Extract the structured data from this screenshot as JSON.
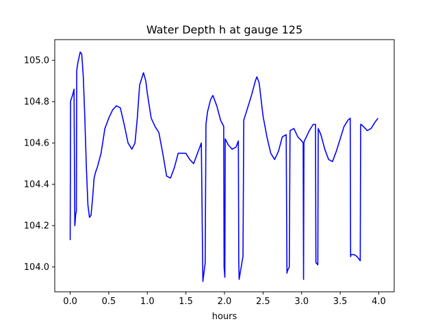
{
  "chart_data": {
    "type": "line",
    "title": "Water Depth h at gauge 125",
    "xlabel": "hours",
    "ylabel": "",
    "xlim": [
      -0.2,
      4.2
    ],
    "ylim": [
      103.88,
      105.1
    ],
    "xticks": [
      0.0,
      0.5,
      1.0,
      1.5,
      2.0,
      2.5,
      3.0,
      3.5,
      4.0
    ],
    "xtick_labels": [
      "0.0",
      "0.5",
      "1.0",
      "1.5",
      "2.0",
      "2.5",
      "3.0",
      "3.5",
      "4.0"
    ],
    "yticks": [
      104.0,
      104.2,
      104.4,
      104.6,
      104.8,
      105.0
    ],
    "ytick_labels": [
      "104.0",
      "104.2",
      "104.4",
      "104.6",
      "104.8",
      "105.0"
    ],
    "grid": false,
    "line_color": "#0000ff",
    "series": [
      {
        "x": [
          0.0,
          0.005,
          0.01,
          0.012,
          0.03,
          0.05,
          0.06,
          0.065,
          0.07,
          0.08,
          0.085,
          0.1,
          0.13,
          0.15,
          0.17,
          0.19,
          0.21,
          0.23,
          0.25,
          0.27,
          0.29,
          0.31,
          0.33,
          0.35,
          0.4,
          0.45,
          0.5,
          0.55,
          0.6,
          0.65,
          0.7,
          0.75,
          0.8,
          0.84,
          0.87,
          0.9,
          0.95,
          0.98,
          1.0,
          1.05,
          1.1,
          1.15,
          1.2,
          1.25,
          1.3,
          1.35,
          1.4,
          1.45,
          1.5,
          1.55,
          1.6,
          1.65,
          1.7,
          1.72,
          1.73,
          1.75,
          1.76,
          1.78,
          1.82,
          1.85,
          1.9,
          1.95,
          1.99,
          1.995,
          2.005,
          2.01,
          2.05,
          2.1,
          2.15,
          2.18,
          2.185,
          2.19,
          2.23,
          2.24,
          2.25,
          2.3,
          2.35,
          2.4,
          2.42,
          2.45,
          2.5,
          2.55,
          2.6,
          2.65,
          2.7,
          2.75,
          2.8,
          2.81,
          2.815,
          2.84,
          2.85,
          2.9,
          2.95,
          3.0,
          3.02,
          3.025,
          3.03,
          3.035,
          3.05,
          3.1,
          3.15,
          3.18,
          3.185,
          3.19,
          3.21,
          3.215,
          3.25,
          3.3,
          3.35,
          3.4,
          3.45,
          3.5,
          3.55,
          3.6,
          3.63,
          3.635,
          3.64,
          3.65,
          3.68,
          3.72,
          3.76,
          3.765,
          3.77,
          3.8,
          3.85,
          3.9,
          3.95,
          3.99
        ],
        "y": [
          104.13,
          104.8,
          104.81,
          104.81,
          104.83,
          104.86,
          104.2,
          104.22,
          104.25,
          104.27,
          104.95,
          104.99,
          105.04,
          105.03,
          104.92,
          104.72,
          104.48,
          104.3,
          104.24,
          104.25,
          104.33,
          104.43,
          104.46,
          104.48,
          104.55,
          104.67,
          104.72,
          104.76,
          104.78,
          104.77,
          104.69,
          104.6,
          104.57,
          104.6,
          104.72,
          104.88,
          104.94,
          104.9,
          104.84,
          104.72,
          104.68,
          104.65,
          104.55,
          104.44,
          104.43,
          104.48,
          104.55,
          104.55,
          104.55,
          104.52,
          104.5,
          104.55,
          104.6,
          103.93,
          103.96,
          104.02,
          104.69,
          104.75,
          104.81,
          104.83,
          104.78,
          104.71,
          104.68,
          104.0,
          103.95,
          104.62,
          104.59,
          104.57,
          104.58,
          104.61,
          104.04,
          103.94,
          104.03,
          104.05,
          104.71,
          104.77,
          104.83,
          104.9,
          104.92,
          104.89,
          104.73,
          104.63,
          104.55,
          104.52,
          104.56,
          104.63,
          104.64,
          103.97,
          103.98,
          104.0,
          104.66,
          104.67,
          104.63,
          104.61,
          104.6,
          103.94,
          104.6,
          104.61,
          104.62,
          104.66,
          104.69,
          104.69,
          104.02,
          104.02,
          104.01,
          104.67,
          104.64,
          104.57,
          104.52,
          104.51,
          104.56,
          104.62,
          104.68,
          104.71,
          104.72,
          104.05,
          104.06,
          104.06,
          104.06,
          104.05,
          104.03,
          104.69,
          104.69,
          104.68,
          104.66,
          104.67,
          104.7,
          104.72
        ]
      }
    ]
  }
}
